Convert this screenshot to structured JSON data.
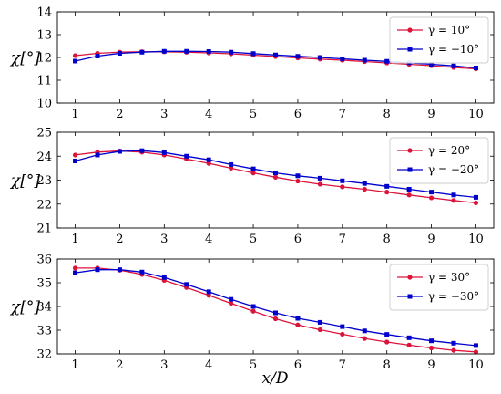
{
  "figure": {
    "xlabel": "x/D"
  },
  "chart_data": [
    {
      "type": "line",
      "ylabel": "χ[°]",
      "xlim": [
        0.6,
        10.4
      ],
      "ylim": [
        10,
        14
      ],
      "xticks": [
        "1",
        "2",
        "3",
        "4",
        "5",
        "6",
        "7",
        "8",
        "9",
        "10"
      ],
      "yticks": [
        "10",
        "11",
        "12",
        "13",
        "14"
      ],
      "grid": false,
      "legend_position": "top-right",
      "x": [
        1,
        1.5,
        2,
        2.5,
        3,
        3.5,
        4,
        4.5,
        5,
        5.5,
        6,
        6.5,
        7,
        7.5,
        8,
        8.5,
        9,
        9.5,
        10
      ],
      "series": [
        {
          "name": "γ = 10°",
          "color": "#dc143c",
          "marker": "circle",
          "values": [
            12.08,
            12.18,
            12.23,
            12.25,
            12.25,
            12.23,
            12.2,
            12.16,
            12.1,
            12.04,
            11.98,
            11.93,
            11.88,
            11.82,
            11.76,
            11.7,
            11.64,
            11.56,
            11.5
          ]
        },
        {
          "name": "γ = −10°",
          "color": "#0000cd",
          "marker": "square",
          "values": [
            11.84,
            12.06,
            12.18,
            12.23,
            12.27,
            12.27,
            12.26,
            12.23,
            12.17,
            12.11,
            12.05,
            12.0,
            11.94,
            11.88,
            11.83,
            11.77,
            11.7,
            11.63,
            11.54
          ]
        }
      ]
    },
    {
      "type": "line",
      "ylabel": "χ[°]",
      "xlim": [
        0.6,
        10.4
      ],
      "ylim": [
        21,
        25
      ],
      "xticks": [
        "1",
        "2",
        "3",
        "4",
        "5",
        "6",
        "7",
        "8",
        "9",
        "10"
      ],
      "yticks": [
        "21",
        "22",
        "23",
        "24",
        "25"
      ],
      "grid": false,
      "legend_position": "top-right",
      "x": [
        1,
        1.5,
        2,
        2.5,
        3,
        3.5,
        4,
        4.5,
        5,
        5.5,
        6,
        6.5,
        7,
        7.5,
        8,
        8.5,
        9,
        9.5,
        10
      ],
      "series": [
        {
          "name": "γ = 20°",
          "color": "#dc143c",
          "marker": "circle",
          "values": [
            24.05,
            24.17,
            24.22,
            24.17,
            24.05,
            23.88,
            23.7,
            23.5,
            23.3,
            23.12,
            22.96,
            22.83,
            22.72,
            22.62,
            22.5,
            22.38,
            22.26,
            22.15,
            22.05
          ]
        },
        {
          "name": "γ = −20°",
          "color": "#0000cd",
          "marker": "square",
          "values": [
            23.8,
            24.05,
            24.2,
            24.23,
            24.15,
            24.0,
            23.85,
            23.65,
            23.47,
            23.3,
            23.18,
            23.08,
            22.97,
            22.86,
            22.74,
            22.62,
            22.5,
            22.38,
            22.28
          ]
        }
      ]
    },
    {
      "type": "line",
      "ylabel": "χ[°]",
      "xlim": [
        0.6,
        10.4
      ],
      "ylim": [
        32,
        36
      ],
      "xticks": [
        "1",
        "2",
        "3",
        "4",
        "5",
        "6",
        "7",
        "8",
        "9",
        "10"
      ],
      "yticks": [
        "32",
        "33",
        "34",
        "35",
        "36"
      ],
      "grid": false,
      "legend_position": "top-right",
      "x": [
        1,
        1.5,
        2,
        2.5,
        3,
        3.5,
        4,
        4.5,
        5,
        5.5,
        6,
        6.5,
        7,
        7.5,
        8,
        8.5,
        9,
        9.5,
        10
      ],
      "series": [
        {
          "name": "γ = 30°",
          "color": "#dc143c",
          "marker": "circle",
          "values": [
            35.62,
            35.62,
            35.53,
            35.35,
            35.1,
            34.8,
            34.47,
            34.13,
            33.8,
            33.48,
            33.22,
            33.02,
            32.83,
            32.65,
            32.5,
            32.37,
            32.25,
            32.15,
            32.08
          ]
        },
        {
          "name": "γ = −30°",
          "color": "#0000cd",
          "marker": "square",
          "values": [
            35.42,
            35.55,
            35.55,
            35.45,
            35.22,
            34.93,
            34.62,
            34.3,
            34.0,
            33.73,
            33.5,
            33.33,
            33.15,
            32.97,
            32.82,
            32.68,
            32.55,
            32.45,
            32.35
          ]
        }
      ]
    }
  ]
}
